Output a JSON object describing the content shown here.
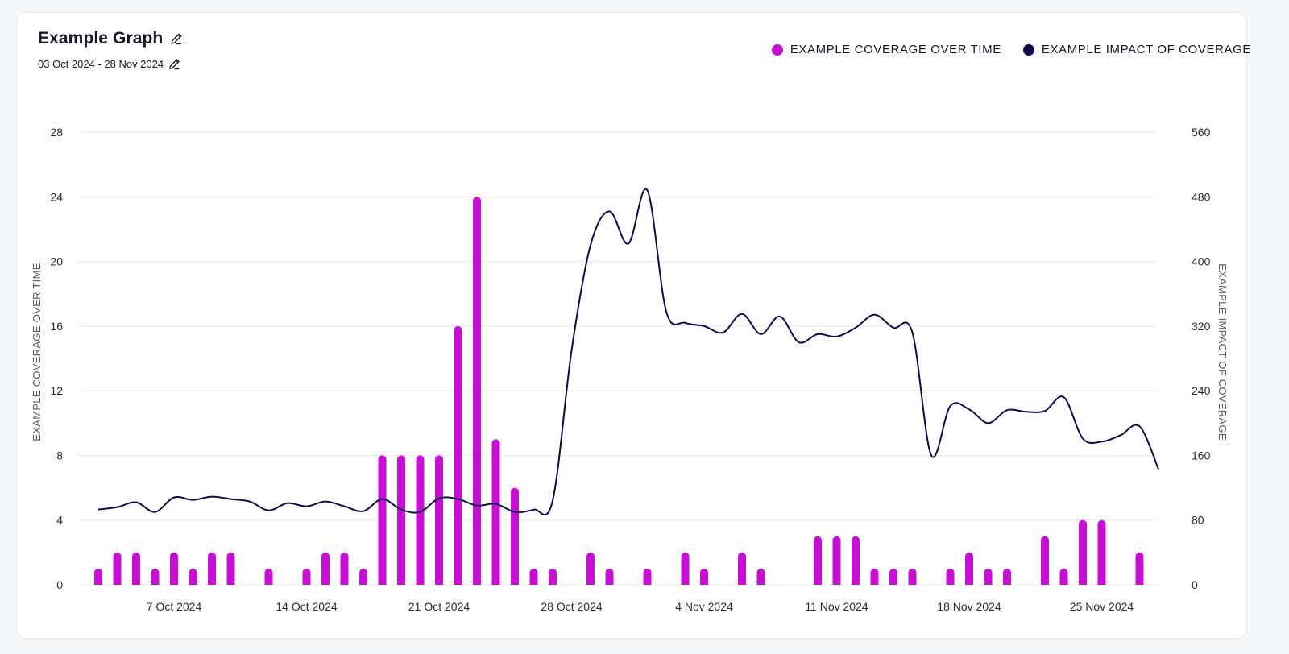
{
  "header": {
    "title": "Example Graph",
    "date_range": "03 Oct 2024 - 28 Nov 2024"
  },
  "legend": [
    {
      "label": "EXAMPLE COVERAGE OVER TIME",
      "color": "#c60fd3"
    },
    {
      "label": "EXAMPLE IMPACT OF COVERAGE",
      "color": "#0d0c4b"
    }
  ],
  "chart_data": {
    "type": "bar",
    "title": "Example Graph",
    "subtitle": "03 Oct 2024 - 28 Nov 2024",
    "x_start_date": "2024-10-03",
    "x_labels": [
      "7 Oct 2024",
      "14 Oct 2024",
      "21 Oct 2024",
      "28 Oct 2024",
      "4 Nov 2024",
      "11 Nov 2024",
      "18 Nov 2024",
      "25 Nov 2024"
    ],
    "x_label_days": [
      4,
      11,
      18,
      25,
      32,
      39,
      46,
      53
    ],
    "ylabel_left": "EXAMPLE COVERAGE OVER TIME",
    "ylabel_right": "EXAMPLE IMPACT OF COVERAGE",
    "ylim_left": [
      0,
      28
    ],
    "ylim_right": [
      0,
      560
    ],
    "yticks_left": [
      0,
      4,
      8,
      12,
      16,
      20,
      24,
      28
    ],
    "yticks_right": [
      0,
      80,
      160,
      240,
      320,
      400,
      480,
      560
    ],
    "grid": true,
    "legend_position": "top-right",
    "series": [
      {
        "name": "EXAMPLE COVERAGE OVER TIME",
        "type": "bar",
        "axis": "left",
        "color": "#c60fd3",
        "points": [
          [
            0,
            1
          ],
          [
            1,
            2
          ],
          [
            2,
            2
          ],
          [
            3,
            1
          ],
          [
            4,
            2
          ],
          [
            5,
            1
          ],
          [
            6,
            2
          ],
          [
            7,
            2
          ],
          [
            9,
            1
          ],
          [
            11,
            1
          ],
          [
            12,
            2
          ],
          [
            13,
            2
          ],
          [
            14,
            1
          ],
          [
            15,
            8
          ],
          [
            16,
            8
          ],
          [
            17,
            8
          ],
          [
            18,
            8
          ],
          [
            19,
            16
          ],
          [
            20,
            24
          ],
          [
            21,
            9
          ],
          [
            22,
            6
          ],
          [
            23,
            1
          ],
          [
            24,
            1
          ],
          [
            26,
            2
          ],
          [
            27,
            1
          ],
          [
            29,
            1
          ],
          [
            31,
            2
          ],
          [
            32,
            1
          ],
          [
            34,
            2
          ],
          [
            35,
            1
          ],
          [
            38,
            3
          ],
          [
            39,
            3
          ],
          [
            40,
            3
          ],
          [
            41,
            1
          ],
          [
            42,
            1
          ],
          [
            43,
            1
          ],
          [
            45,
            1
          ],
          [
            46,
            2
          ],
          [
            47,
            1
          ],
          [
            48,
            1
          ],
          [
            50,
            3
          ],
          [
            51,
            1
          ],
          [
            52,
            4
          ],
          [
            53,
            4
          ],
          [
            55,
            2
          ]
        ]
      },
      {
        "name": "EXAMPLE IMPACT OF COVERAGE",
        "type": "line",
        "axis": "right",
        "color": "#0d0c4b",
        "points": [
          [
            0,
            93
          ],
          [
            1,
            96
          ],
          [
            2,
            102
          ],
          [
            3,
            90
          ],
          [
            4,
            108
          ],
          [
            5,
            105
          ],
          [
            6,
            109
          ],
          [
            7,
            106
          ],
          [
            8,
            103
          ],
          [
            9,
            92
          ],
          [
            10,
            101
          ],
          [
            11,
            97
          ],
          [
            12,
            103
          ],
          [
            13,
            97
          ],
          [
            14,
            91
          ],
          [
            15,
            106
          ],
          [
            16,
            93
          ],
          [
            17,
            90
          ],
          [
            18,
            107
          ],
          [
            19,
            106
          ],
          [
            20,
            98
          ],
          [
            21,
            100
          ],
          [
            22,
            90
          ],
          [
            23,
            93
          ],
          [
            24,
            104
          ],
          [
            25,
            290
          ],
          [
            26,
            420
          ],
          [
            27,
            462
          ],
          [
            28,
            422
          ],
          [
            29,
            488
          ],
          [
            30,
            338
          ],
          [
            31,
            324
          ],
          [
            32,
            320
          ],
          [
            33,
            312
          ],
          [
            34,
            335
          ],
          [
            35,
            310
          ],
          [
            36,
            332
          ],
          [
            37,
            300
          ],
          [
            38,
            310
          ],
          [
            39,
            307
          ],
          [
            40,
            318
          ],
          [
            41,
            334
          ],
          [
            42,
            318
          ],
          [
            43,
            312
          ],
          [
            44,
            160
          ],
          [
            45,
            221
          ],
          [
            46,
            217
          ],
          [
            47,
            200
          ],
          [
            48,
            216
          ],
          [
            49,
            214
          ],
          [
            50,
            215
          ],
          [
            51,
            232
          ],
          [
            52,
            181
          ],
          [
            53,
            177
          ],
          [
            54,
            185
          ],
          [
            55,
            196
          ],
          [
            56,
            143
          ]
        ]
      }
    ]
  }
}
